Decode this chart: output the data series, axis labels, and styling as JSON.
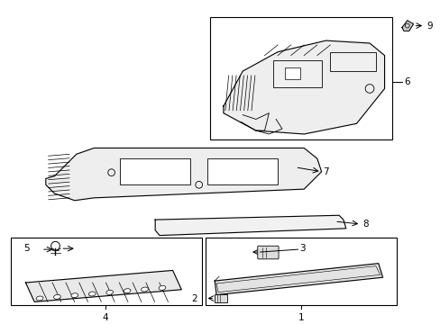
{
  "background_color": "#ffffff",
  "line_color": "#000000",
  "text_color": "#000000",
  "figure_width": 4.89,
  "figure_height": 3.6,
  "dpi": 100
}
